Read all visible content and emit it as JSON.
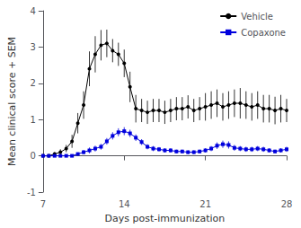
{
  "chart_data": {
    "type": "line",
    "xlabel": "Days post-immunization",
    "ylabel": "Mean clinical score + SEM",
    "xlim": [
      7,
      28
    ],
    "xticks": [
      7,
      14,
      21,
      28
    ],
    "ylim": [
      -1,
      4
    ],
    "yticks": [
      -1,
      0,
      1,
      2,
      3,
      4
    ],
    "grid": false,
    "legend": "upper right",
    "series": [
      {
        "name": "Vehicle",
        "color": "#000000",
        "marker": "circle",
        "x": [
          7,
          7.5,
          8,
          8.5,
          9,
          9.5,
          10,
          10.5,
          11,
          11.5,
          12,
          12.5,
          13,
          13.5,
          14,
          14.5,
          15,
          15.5,
          16,
          16.5,
          17,
          17.5,
          18,
          18.5,
          19,
          19.5,
          20,
          20.5,
          21,
          21.5,
          22,
          22.5,
          23,
          23.5,
          24,
          24.5,
          25,
          25.5,
          26,
          26.5,
          27,
          27.5,
          28
        ],
        "values": [
          0.0,
          0.0,
          0.05,
          0.1,
          0.2,
          0.4,
          0.9,
          1.4,
          2.4,
          2.8,
          3.05,
          3.1,
          2.9,
          2.8,
          2.55,
          1.9,
          1.3,
          1.25,
          1.2,
          1.25,
          1.25,
          1.2,
          1.25,
          1.3,
          1.3,
          1.35,
          1.25,
          1.3,
          1.35,
          1.4,
          1.45,
          1.35,
          1.4,
          1.45,
          1.45,
          1.4,
          1.35,
          1.4,
          1.3,
          1.3,
          1.25,
          1.3,
          1.25
        ],
        "error": [
          0.02,
          0.02,
          0.05,
          0.08,
          0.1,
          0.18,
          0.28,
          0.38,
          0.48,
          0.5,
          0.42,
          0.38,
          0.32,
          0.32,
          0.38,
          0.42,
          0.38,
          0.32,
          0.32,
          0.32,
          0.32,
          0.32,
          0.32,
          0.32,
          0.32,
          0.32,
          0.32,
          0.32,
          0.38,
          0.38,
          0.38,
          0.38,
          0.38,
          0.38,
          0.42,
          0.38,
          0.38,
          0.38,
          0.38,
          0.38,
          0.38,
          0.38,
          0.32
        ]
      },
      {
        "name": "Copaxone",
        "color": "#0000dd",
        "marker": "square",
        "x": [
          7,
          7.5,
          8,
          8.5,
          9,
          9.5,
          10,
          10.5,
          11,
          11.5,
          12,
          12.5,
          13,
          13.5,
          14,
          14.5,
          15,
          15.5,
          16,
          16.5,
          17,
          17.5,
          18,
          18.5,
          19,
          19.5,
          20,
          20.5,
          21,
          21.5,
          22,
          22.5,
          23,
          23.5,
          24,
          24.5,
          25,
          25.5,
          26,
          26.5,
          27,
          27.5,
          28
        ],
        "values": [
          0.0,
          0.0,
          0.0,
          0.0,
          0.0,
          0.0,
          0.05,
          0.1,
          0.15,
          0.2,
          0.25,
          0.4,
          0.55,
          0.65,
          0.68,
          0.62,
          0.5,
          0.38,
          0.25,
          0.2,
          0.18,
          0.15,
          0.15,
          0.12,
          0.12,
          0.1,
          0.1,
          0.12,
          0.15,
          0.2,
          0.28,
          0.32,
          0.3,
          0.22,
          0.2,
          0.18,
          0.18,
          0.2,
          0.18,
          0.15,
          0.12,
          0.15,
          0.18
        ],
        "error": [
          0.0,
          0.0,
          0.0,
          0.0,
          0.0,
          0.0,
          0.04,
          0.06,
          0.08,
          0.08,
          0.08,
          0.09,
          0.1,
          0.11,
          0.11,
          0.1,
          0.09,
          0.08,
          0.07,
          0.07,
          0.06,
          0.06,
          0.06,
          0.05,
          0.05,
          0.05,
          0.05,
          0.05,
          0.06,
          0.07,
          0.09,
          0.1,
          0.1,
          0.08,
          0.07,
          0.07,
          0.07,
          0.07,
          0.07,
          0.06,
          0.05,
          0.06,
          0.07
        ]
      }
    ]
  }
}
